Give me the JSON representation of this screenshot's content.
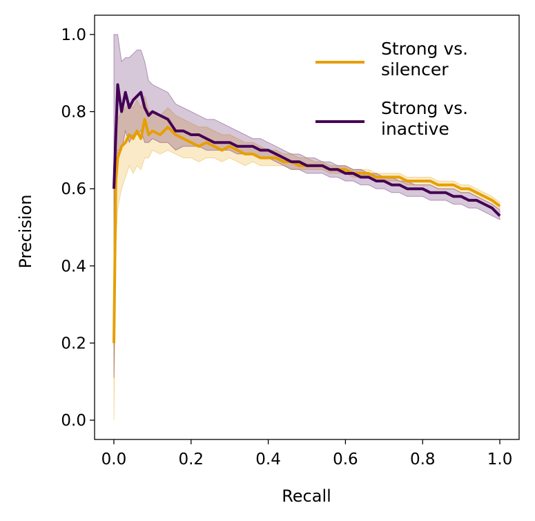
{
  "chart_data": {
    "type": "line",
    "title": "",
    "xlabel": "Recall",
    "ylabel": "Precision",
    "xlim": [
      -0.05,
      1.05
    ],
    "ylim": [
      -0.05,
      1.05
    ],
    "xticks": [
      "0.0",
      "0.2",
      "0.4",
      "0.6",
      "0.8",
      "1.0"
    ],
    "yticks": [
      "0.0",
      "0.2",
      "0.4",
      "0.6",
      "0.8",
      "1.0"
    ],
    "grid": false,
    "legend_position": "top-right",
    "series": [
      {
        "name": "Strong vs.\nsilencer",
        "legend_lines": [
          "Strong vs.",
          "silencer"
        ],
        "color": "#E69F00",
        "x": [
          0,
          0.005,
          0.01,
          0.02,
          0.03,
          0.04,
          0.05,
          0.06,
          0.07,
          0.08,
          0.09,
          0.1,
          0.12,
          0.14,
          0.16,
          0.18,
          0.2,
          0.22,
          0.24,
          0.26,
          0.28,
          0.3,
          0.32,
          0.34,
          0.36,
          0.38,
          0.4,
          0.42,
          0.44,
          0.46,
          0.48,
          0.5,
          0.52,
          0.54,
          0.56,
          0.58,
          0.6,
          0.62,
          0.64,
          0.66,
          0.68,
          0.7,
          0.72,
          0.74,
          0.76,
          0.78,
          0.8,
          0.82,
          0.84,
          0.86,
          0.88,
          0.9,
          0.92,
          0.94,
          0.96,
          0.98,
          1.0
        ],
        "y": [
          0.2,
          0.62,
          0.68,
          0.71,
          0.72,
          0.74,
          0.73,
          0.75,
          0.73,
          0.78,
          0.74,
          0.75,
          0.74,
          0.76,
          0.74,
          0.73,
          0.72,
          0.71,
          0.72,
          0.71,
          0.7,
          0.71,
          0.7,
          0.69,
          0.69,
          0.68,
          0.68,
          0.68,
          0.67,
          0.67,
          0.66,
          0.66,
          0.66,
          0.66,
          0.65,
          0.65,
          0.65,
          0.64,
          0.64,
          0.64,
          0.63,
          0.63,
          0.63,
          0.63,
          0.62,
          0.62,
          0.62,
          0.62,
          0.61,
          0.61,
          0.61,
          0.6,
          0.6,
          0.59,
          0.58,
          0.57,
          0.555
        ],
        "band_lower": [
          0.0,
          0.45,
          0.55,
          0.6,
          0.63,
          0.66,
          0.64,
          0.66,
          0.65,
          0.68,
          0.68,
          0.7,
          0.69,
          0.7,
          0.69,
          0.68,
          0.68,
          0.67,
          0.68,
          0.68,
          0.67,
          0.68,
          0.67,
          0.66,
          0.67,
          0.66,
          0.66,
          0.66,
          0.66,
          0.65,
          0.65,
          0.65,
          0.65,
          0.65,
          0.64,
          0.64,
          0.64,
          0.63,
          0.63,
          0.63,
          0.62,
          0.62,
          0.62,
          0.62,
          0.61,
          0.61,
          0.61,
          0.61,
          0.6,
          0.6,
          0.6,
          0.59,
          0.59,
          0.58,
          0.57,
          0.56,
          0.545
        ],
        "band_upper": [
          0.6,
          0.8,
          0.78,
          0.8,
          0.81,
          0.82,
          0.81,
          0.83,
          0.81,
          0.84,
          0.8,
          0.8,
          0.79,
          0.81,
          0.79,
          0.78,
          0.77,
          0.76,
          0.76,
          0.75,
          0.74,
          0.74,
          0.73,
          0.72,
          0.72,
          0.71,
          0.7,
          0.7,
          0.69,
          0.69,
          0.68,
          0.68,
          0.67,
          0.67,
          0.66,
          0.66,
          0.66,
          0.65,
          0.65,
          0.65,
          0.64,
          0.64,
          0.64,
          0.64,
          0.63,
          0.63,
          0.63,
          0.63,
          0.62,
          0.62,
          0.62,
          0.61,
          0.61,
          0.6,
          0.59,
          0.58,
          0.565
        ]
      },
      {
        "name": "Strong vs.\ninactive",
        "legend_lines": [
          "Strong vs.",
          "inactive"
        ],
        "color": "#440154",
        "x": [
          0,
          0.005,
          0.01,
          0.02,
          0.03,
          0.04,
          0.05,
          0.06,
          0.07,
          0.08,
          0.09,
          0.1,
          0.12,
          0.14,
          0.16,
          0.18,
          0.2,
          0.22,
          0.24,
          0.26,
          0.28,
          0.3,
          0.32,
          0.34,
          0.36,
          0.38,
          0.4,
          0.42,
          0.44,
          0.46,
          0.48,
          0.5,
          0.52,
          0.54,
          0.56,
          0.58,
          0.6,
          0.62,
          0.64,
          0.66,
          0.68,
          0.7,
          0.72,
          0.74,
          0.76,
          0.78,
          0.8,
          0.82,
          0.84,
          0.86,
          0.88,
          0.9,
          0.92,
          0.94,
          0.96,
          0.98,
          1.0
        ],
        "y": [
          0.6,
          0.74,
          0.87,
          0.8,
          0.85,
          0.81,
          0.83,
          0.84,
          0.85,
          0.81,
          0.79,
          0.8,
          0.79,
          0.78,
          0.75,
          0.75,
          0.74,
          0.74,
          0.73,
          0.72,
          0.72,
          0.72,
          0.71,
          0.71,
          0.71,
          0.7,
          0.7,
          0.69,
          0.68,
          0.67,
          0.67,
          0.66,
          0.66,
          0.66,
          0.65,
          0.65,
          0.64,
          0.64,
          0.63,
          0.63,
          0.62,
          0.62,
          0.61,
          0.61,
          0.6,
          0.6,
          0.6,
          0.59,
          0.59,
          0.59,
          0.58,
          0.58,
          0.57,
          0.57,
          0.56,
          0.55,
          0.53
        ],
        "band_lower": [
          0.11,
          0.55,
          0.7,
          0.7,
          0.75,
          0.72,
          0.74,
          0.74,
          0.75,
          0.72,
          0.72,
          0.73,
          0.72,
          0.72,
          0.7,
          0.71,
          0.71,
          0.71,
          0.7,
          0.7,
          0.7,
          0.7,
          0.69,
          0.69,
          0.69,
          0.68,
          0.68,
          0.67,
          0.66,
          0.65,
          0.65,
          0.64,
          0.64,
          0.64,
          0.63,
          0.63,
          0.62,
          0.62,
          0.61,
          0.61,
          0.6,
          0.6,
          0.59,
          0.59,
          0.58,
          0.58,
          0.58,
          0.57,
          0.57,
          0.57,
          0.56,
          0.56,
          0.55,
          0.55,
          0.54,
          0.53,
          0.52
        ],
        "band_upper": [
          1.0,
          1.0,
          1.0,
          0.93,
          0.94,
          0.94,
          0.95,
          0.96,
          0.96,
          0.93,
          0.88,
          0.87,
          0.86,
          0.85,
          0.82,
          0.81,
          0.8,
          0.79,
          0.78,
          0.78,
          0.77,
          0.76,
          0.75,
          0.74,
          0.73,
          0.73,
          0.72,
          0.71,
          0.7,
          0.69,
          0.69,
          0.68,
          0.68,
          0.67,
          0.67,
          0.66,
          0.66,
          0.65,
          0.65,
          0.64,
          0.64,
          0.63,
          0.63,
          0.62,
          0.62,
          0.61,
          0.61,
          0.61,
          0.6,
          0.6,
          0.6,
          0.59,
          0.59,
          0.58,
          0.57,
          0.56,
          0.545
        ]
      }
    ]
  }
}
